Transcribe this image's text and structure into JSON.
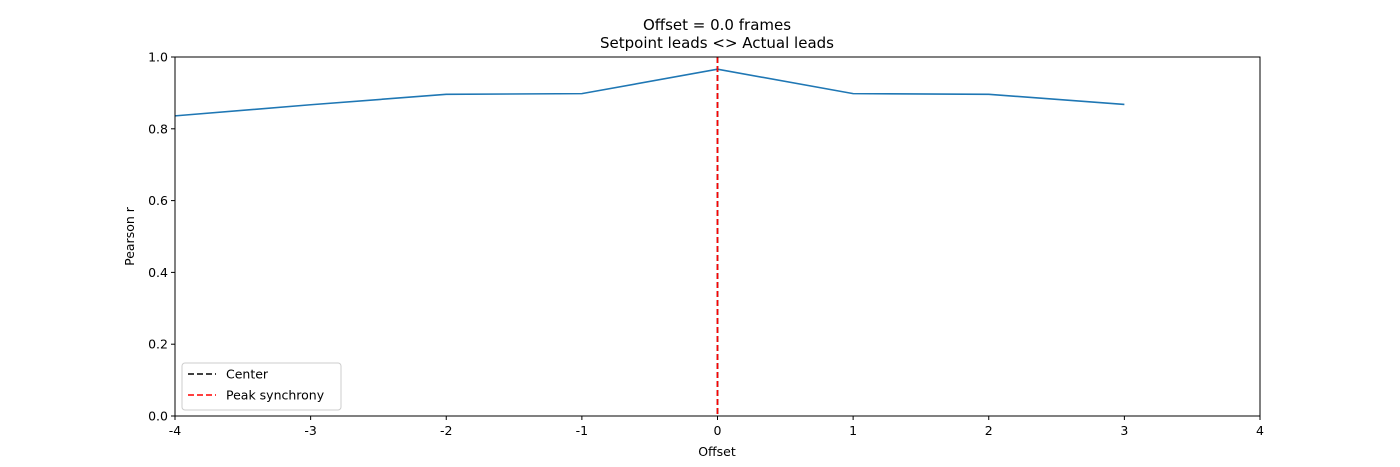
{
  "chart_data": {
    "type": "line",
    "title": "Offset = 0.0 frames",
    "subtitle": "Setpoint leads <> Actual leads",
    "xlabel": "Offset",
    "ylabel": "Pearson r",
    "xlim": [
      -4,
      4
    ],
    "ylim": [
      0.0,
      1.0
    ],
    "xticks": [
      "-4",
      "-3",
      "-2",
      "-1",
      "0",
      "1",
      "2",
      "3",
      "4"
    ],
    "yticks": [
      "0.0",
      "0.2",
      "0.4",
      "0.6",
      "0.8",
      "1.0"
    ],
    "grid": false,
    "series": [
      {
        "color": "#1f77b4",
        "x": [
          -4,
          -3,
          -2,
          -1,
          0,
          1,
          2,
          3
        ],
        "y": [
          0.836,
          0.867,
          0.896,
          0.898,
          0.966,
          0.898,
          0.896,
          0.868
        ]
      }
    ],
    "vlines": [
      {
        "name": "Center",
        "x": 0,
        "color": "#000000",
        "style": "dashed"
      },
      {
        "name": "Peak synchrony",
        "x": 0,
        "color": "#ff0000",
        "style": "dashed"
      }
    ],
    "legend": {
      "position": "lower-left",
      "entries": [
        {
          "label": "Center",
          "color": "#000000"
        },
        {
          "label": "Peak synchrony",
          "color": "#ff0000"
        }
      ]
    }
  }
}
